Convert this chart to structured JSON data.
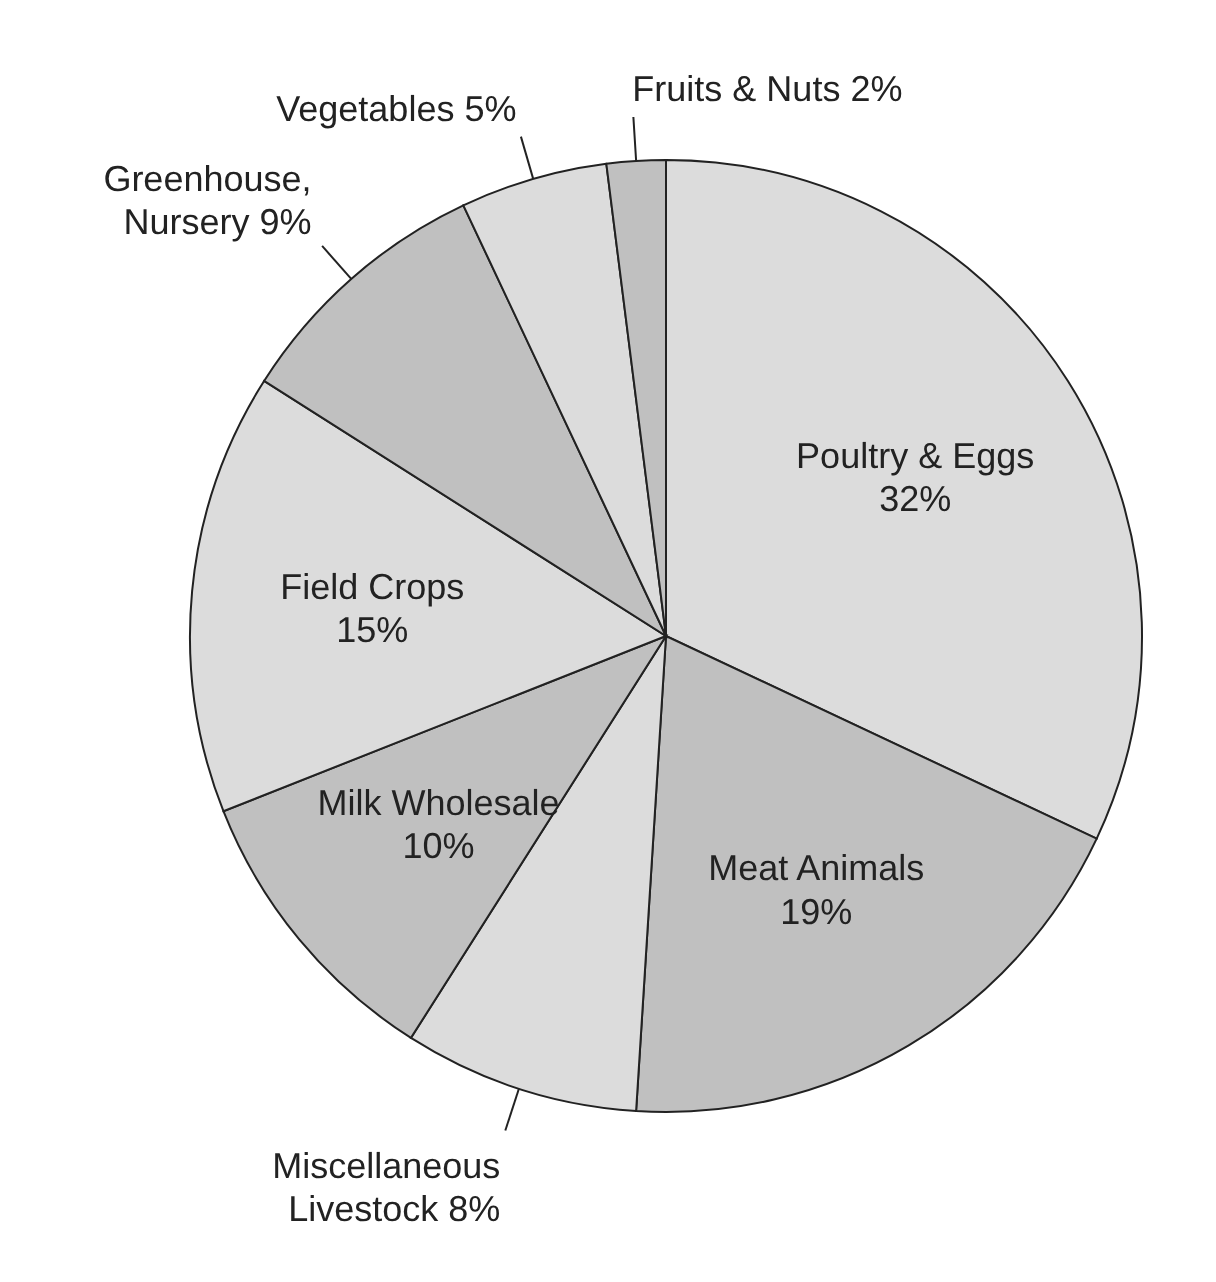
{
  "chart_data": {
    "type": "pie",
    "value_labels": [
      "32%",
      "19%",
      "8%",
      "10%",
      "15%",
      "9%",
      "5%",
      "2%"
    ],
    "categories": [
      "Poultry & Eggs",
      "Meat Animals",
      "Miscellaneous Livestock",
      "Milk Wholesale",
      "Field Crops",
      "Greenhouse, Nursery",
      "Vegetables",
      "Fruits & Nuts"
    ],
    "values": [
      32,
      19,
      8,
      10,
      15,
      9,
      5,
      2
    ],
    "colors": [
      "#dcdcdc",
      "#c0c0c0",
      "#dcdcdc",
      "#c0c0c0",
      "#dcdcdc",
      "#c0c0c0",
      "#dcdcdc",
      "#c0c0c0"
    ]
  }
}
